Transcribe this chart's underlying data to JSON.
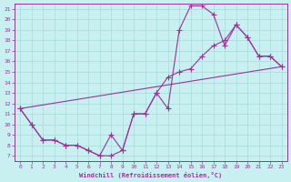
{
  "xlabel": "Windchill (Refroidissement éolien,°C)",
  "ylabel": "",
  "background_color": "#c8f0f0",
  "grid_color": "#a8dada",
  "line_color": "#993399",
  "xlim": [
    -0.5,
    23.5
  ],
  "ylim": [
    6.5,
    21.5
  ],
  "xticks": [
    0,
    1,
    2,
    3,
    4,
    5,
    6,
    7,
    8,
    9,
    10,
    11,
    12,
    13,
    14,
    15,
    16,
    17,
    18,
    19,
    20,
    21,
    22,
    23
  ],
  "yticks": [
    7,
    8,
    9,
    10,
    11,
    12,
    13,
    14,
    15,
    16,
    17,
    18,
    19,
    20,
    21
  ],
  "lines": [
    {
      "x": [
        0,
        1,
        2,
        3,
        4,
        5,
        6,
        7,
        8,
        9,
        10,
        11,
        12,
        13,
        14,
        15,
        16,
        17,
        18,
        19,
        20,
        21,
        22,
        23
      ],
      "y": [
        11.5,
        10.0,
        8.5,
        8.5,
        8.0,
        8.0,
        7.5,
        7.0,
        9.0,
        7.5,
        11.0,
        11.0,
        13.0,
        11.5,
        19.0,
        21.3,
        21.3,
        20.5,
        17.5,
        19.5,
        18.3,
        16.5,
        16.5,
        15.5
      ],
      "markers": true
    },
    {
      "x": [
        0,
        1,
        2,
        3,
        4,
        5,
        6,
        7,
        8,
        9,
        10,
        11,
        12,
        13,
        14,
        15,
        16,
        17,
        18,
        19,
        20,
        21,
        22,
        23
      ],
      "y": [
        11.5,
        10.0,
        8.5,
        8.5,
        8.0,
        8.0,
        7.5,
        7.0,
        7.0,
        7.5,
        11.0,
        11.0,
        13.0,
        14.5,
        15.0,
        15.3,
        16.5,
        17.5,
        18.0,
        19.5,
        18.3,
        16.5,
        16.5,
        15.5
      ],
      "markers": true
    },
    {
      "x": [
        0,
        23
      ],
      "y": [
        11.5,
        15.5
      ],
      "markers": false
    }
  ]
}
